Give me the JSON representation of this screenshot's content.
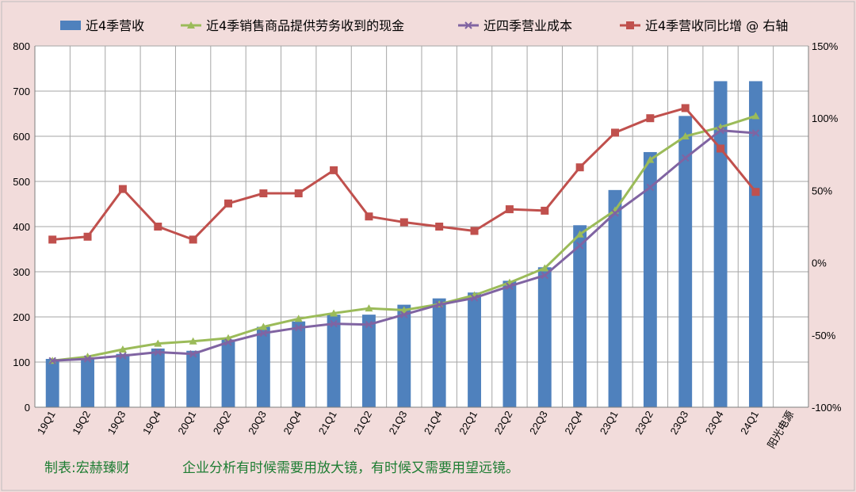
{
  "chart_data": {
    "type": "bar",
    "categories": [
      "19Q1",
      "19Q2",
      "19Q3",
      "19Q4",
      "20Q1",
      "20Q2",
      "20Q3",
      "20Q4",
      "21Q1",
      "21Q2",
      "21Q3",
      "21Q4",
      "22Q1",
      "22Q2",
      "22Q3",
      "22Q4",
      "23Q1",
      "23Q2",
      "23Q3",
      "23Q4",
      "24Q1"
    ],
    "extra_category": "阳光电源",
    "left_axis": {
      "min": 0,
      "max": 800,
      "ticks": [
        "0",
        "100",
        "200",
        "300",
        "400",
        "500",
        "600",
        "700",
        "800"
      ]
    },
    "right_axis": {
      "min": -100,
      "max": 150,
      "ticks": [
        "-100%",
        "-50%",
        "0%",
        "50%",
        "100%",
        "150%"
      ]
    },
    "grid": true,
    "legend_position": "top",
    "series": [
      {
        "name": "近4季营收",
        "type": "bar",
        "axis": "left",
        "color": "#4f81bd",
        "values": [
          107,
          110,
          118,
          130,
          125,
          150,
          178,
          190,
          205,
          205,
          227,
          241,
          254,
          280,
          310,
          403,
          481,
          565,
          645,
          722,
          722
        ]
      },
      {
        "name": "近4季销售商品提供劳务收到的现金",
        "type": "line",
        "axis": "left",
        "color": "#9bbb59",
        "marker": "triangle",
        "values": [
          103,
          112,
          128,
          141,
          146,
          153,
          178,
          196,
          208,
          219,
          215,
          228,
          248,
          276,
          308,
          383,
          436,
          548,
          600,
          620,
          645
        ]
      },
      {
        "name": "近四季营业成本",
        "type": "line",
        "axis": "left",
        "color": "#8064a2",
        "marker": "x",
        "values": [
          103,
          107,
          114,
          122,
          118,
          144,
          164,
          176,
          185,
          183,
          205,
          227,
          242,
          268,
          292,
          358,
          430,
          487,
          552,
          613,
          607
        ]
      },
      {
        "name": "近4季营收同比增 @ 右轴",
        "type": "line",
        "axis": "right",
        "color": "#c0504d",
        "marker": "square",
        "values": [
          16,
          18,
          51,
          25,
          16,
          41,
          48,
          48,
          64,
          32,
          28,
          25,
          22,
          37,
          36,
          66,
          90,
          100,
          107,
          79,
          49
        ]
      }
    ]
  },
  "footer": {
    "credit": "制表:宏赫臻财",
    "slogan": "企业分析有时候需要用放大镜，有时候又需要用望远镜。"
  }
}
